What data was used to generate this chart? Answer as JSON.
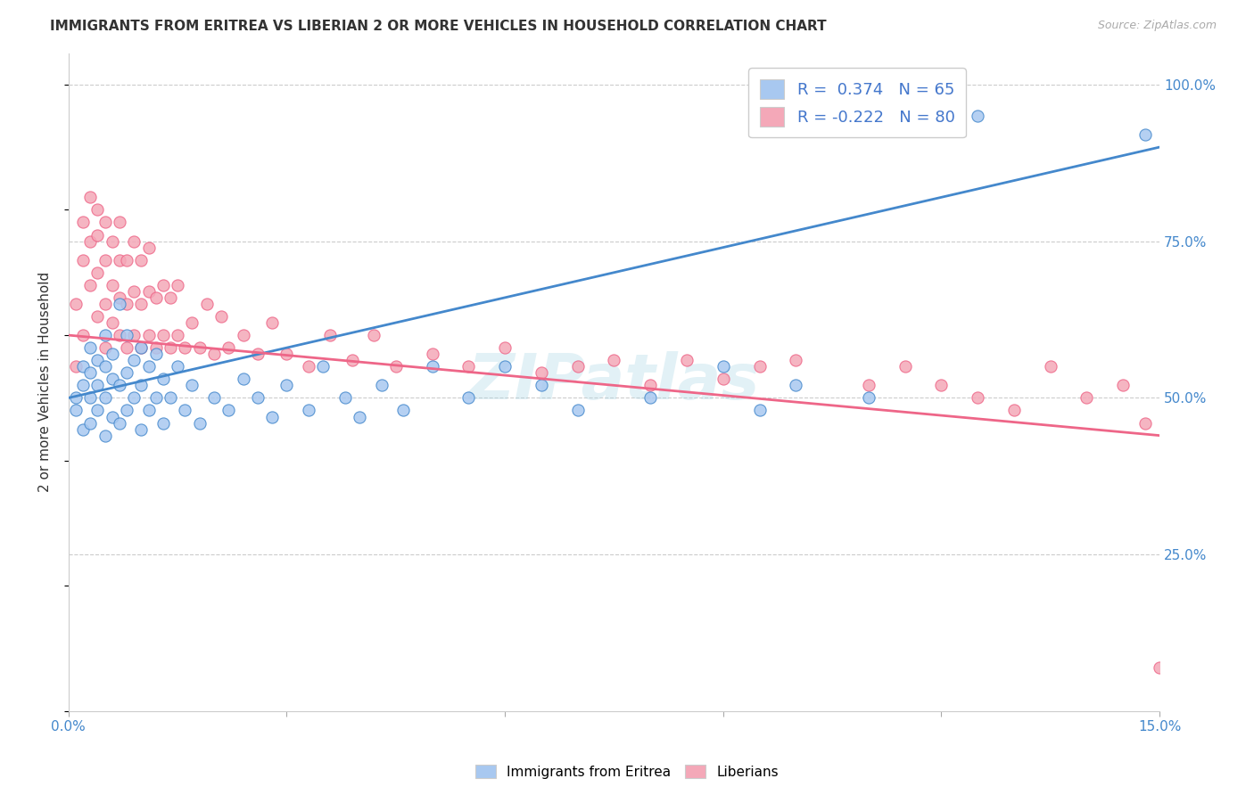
{
  "title": "IMMIGRANTS FROM ERITREA VS LIBERIAN 2 OR MORE VEHICLES IN HOUSEHOLD CORRELATION CHART",
  "source": "Source: ZipAtlas.com",
  "ylabel": "2 or more Vehicles in Household",
  "xmin": 0.0,
  "xmax": 0.15,
  "ymin": 0.0,
  "ymax": 1.05,
  "xtick_positions": [
    0.0,
    0.03,
    0.06,
    0.09,
    0.12,
    0.15
  ],
  "xticklabels": [
    "0.0%",
    "",
    "",
    "",
    "",
    "15.0%"
  ],
  "ytick_positions": [
    0.25,
    0.5,
    0.75,
    1.0
  ],
  "ytick_labels": [
    "25.0%",
    "50.0%",
    "75.0%",
    "100.0%"
  ],
  "legend_labels": [
    "Immigrants from Eritrea",
    "Liberians"
  ],
  "R_eritrea": 0.374,
  "N_eritrea": 65,
  "R_liberia": -0.222,
  "N_liberia": 80,
  "color_eritrea": "#a8c8f0",
  "color_liberia": "#f4a8b8",
  "line_color_eritrea": "#4488cc",
  "line_color_liberia": "#ee6688",
  "watermark": "ZIPatlas",
  "eritrea_line_x0": 0.0,
  "eritrea_line_y0": 0.5,
  "eritrea_line_x1": 0.15,
  "eritrea_line_y1": 0.9,
  "liberia_line_x0": 0.0,
  "liberia_line_y0": 0.6,
  "liberia_line_x1": 0.15,
  "liberia_line_y1": 0.44,
  "scatter_eritrea_x": [
    0.001,
    0.001,
    0.002,
    0.002,
    0.002,
    0.003,
    0.003,
    0.003,
    0.003,
    0.004,
    0.004,
    0.004,
    0.005,
    0.005,
    0.005,
    0.005,
    0.006,
    0.006,
    0.006,
    0.007,
    0.007,
    0.007,
    0.008,
    0.008,
    0.008,
    0.009,
    0.009,
    0.01,
    0.01,
    0.01,
    0.011,
    0.011,
    0.012,
    0.012,
    0.013,
    0.013,
    0.014,
    0.015,
    0.016,
    0.017,
    0.018,
    0.02,
    0.022,
    0.024,
    0.026,
    0.028,
    0.03,
    0.033,
    0.035,
    0.038,
    0.04,
    0.043,
    0.046,
    0.05,
    0.055,
    0.06,
    0.065,
    0.07,
    0.08,
    0.09,
    0.095,
    0.1,
    0.11,
    0.125,
    0.148
  ],
  "scatter_eritrea_y": [
    0.5,
    0.48,
    0.52,
    0.45,
    0.55,
    0.5,
    0.46,
    0.54,
    0.58,
    0.48,
    0.52,
    0.56,
    0.44,
    0.5,
    0.55,
    0.6,
    0.47,
    0.53,
    0.57,
    0.46,
    0.52,
    0.65,
    0.48,
    0.54,
    0.6,
    0.5,
    0.56,
    0.45,
    0.52,
    0.58,
    0.48,
    0.55,
    0.5,
    0.57,
    0.46,
    0.53,
    0.5,
    0.55,
    0.48,
    0.52,
    0.46,
    0.5,
    0.48,
    0.53,
    0.5,
    0.47,
    0.52,
    0.48,
    0.55,
    0.5,
    0.47,
    0.52,
    0.48,
    0.55,
    0.5,
    0.55,
    0.52,
    0.48,
    0.5,
    0.55,
    0.48,
    0.52,
    0.5,
    0.95,
    0.92
  ],
  "scatter_liberia_x": [
    0.001,
    0.001,
    0.002,
    0.002,
    0.002,
    0.003,
    0.003,
    0.003,
    0.004,
    0.004,
    0.004,
    0.004,
    0.005,
    0.005,
    0.005,
    0.005,
    0.006,
    0.006,
    0.006,
    0.007,
    0.007,
    0.007,
    0.007,
    0.008,
    0.008,
    0.008,
    0.009,
    0.009,
    0.009,
    0.01,
    0.01,
    0.01,
    0.011,
    0.011,
    0.011,
    0.012,
    0.012,
    0.013,
    0.013,
    0.014,
    0.014,
    0.015,
    0.015,
    0.016,
    0.017,
    0.018,
    0.019,
    0.02,
    0.021,
    0.022,
    0.024,
    0.026,
    0.028,
    0.03,
    0.033,
    0.036,
    0.039,
    0.042,
    0.045,
    0.05,
    0.055,
    0.06,
    0.065,
    0.07,
    0.075,
    0.08,
    0.085,
    0.09,
    0.095,
    0.1,
    0.11,
    0.115,
    0.12,
    0.125,
    0.13,
    0.135,
    0.14,
    0.145,
    0.148,
    0.15
  ],
  "scatter_liberia_y": [
    0.55,
    0.65,
    0.6,
    0.72,
    0.78,
    0.68,
    0.75,
    0.82,
    0.63,
    0.7,
    0.76,
    0.8,
    0.58,
    0.65,
    0.72,
    0.78,
    0.62,
    0.68,
    0.75,
    0.6,
    0.66,
    0.72,
    0.78,
    0.58,
    0.65,
    0.72,
    0.6,
    0.67,
    0.75,
    0.58,
    0.65,
    0.72,
    0.6,
    0.67,
    0.74,
    0.58,
    0.66,
    0.6,
    0.68,
    0.58,
    0.66,
    0.6,
    0.68,
    0.58,
    0.62,
    0.58,
    0.65,
    0.57,
    0.63,
    0.58,
    0.6,
    0.57,
    0.62,
    0.57,
    0.55,
    0.6,
    0.56,
    0.6,
    0.55,
    0.57,
    0.55,
    0.58,
    0.54,
    0.55,
    0.56,
    0.52,
    0.56,
    0.53,
    0.55,
    0.56,
    0.52,
    0.55,
    0.52,
    0.5,
    0.48,
    0.55,
    0.5,
    0.52,
    0.46,
    0.07
  ]
}
